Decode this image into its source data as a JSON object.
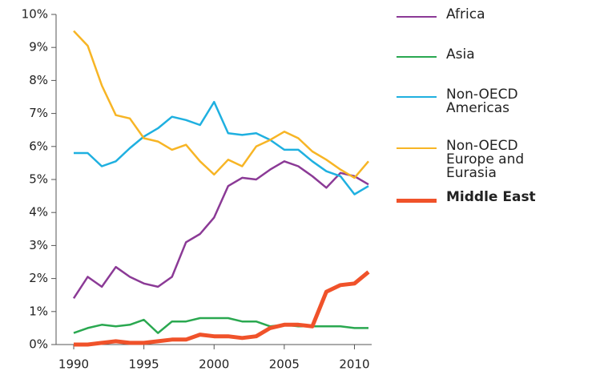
{
  "chart_data": {
    "type": "line",
    "x": [
      1990,
      1991,
      1992,
      1993,
      1994,
      1995,
      1996,
      1997,
      1998,
      1999,
      2000,
      2001,
      2002,
      2003,
      2004,
      2005,
      2006,
      2007,
      2008,
      2009,
      2010,
      2011
    ],
    "series": [
      {
        "name": "Africa",
        "color": "#8b3a96",
        "width": 2.5,
        "bold": false,
        "values": [
          1.4,
          2.05,
          1.75,
          2.35,
          2.05,
          1.85,
          1.75,
          2.05,
          3.1,
          3.35,
          3.85,
          4.8,
          5.05,
          5.0,
          5.3,
          5.55,
          5.4,
          5.1,
          4.75,
          5.2,
          5.1,
          4.85
        ]
      },
      {
        "name": "Asia",
        "color": "#2aa850",
        "width": 2.5,
        "bold": false,
        "values": [
          0.35,
          0.5,
          0.6,
          0.55,
          0.6,
          0.75,
          0.35,
          0.7,
          0.7,
          0.8,
          0.8,
          0.8,
          0.7,
          0.7,
          0.55,
          0.6,
          0.55,
          0.55,
          0.55,
          0.55,
          0.5,
          0.5
        ]
      },
      {
        "name": "Non-OECD Americas",
        "color": "#1fb0e0",
        "width": 2.5,
        "bold": false,
        "values": [
          5.8,
          5.8,
          5.4,
          5.55,
          5.95,
          6.3,
          6.55,
          6.9,
          6.8,
          6.65,
          7.35,
          6.4,
          6.35,
          6.4,
          6.2,
          5.9,
          5.9,
          5.55,
          5.25,
          5.1,
          4.55,
          4.8
        ]
      },
      {
        "name": "Non-OECD Europe and Eurasia",
        "color": "#f7b525",
        "width": 2.5,
        "bold": false,
        "values": [
          9.5,
          9.05,
          7.85,
          6.95,
          6.85,
          6.25,
          6.15,
          5.9,
          6.05,
          5.55,
          5.15,
          5.6,
          5.4,
          6.0,
          6.2,
          6.45,
          6.25,
          5.85,
          5.6,
          5.3,
          5.05,
          5.55
        ]
      },
      {
        "name": "Middle East",
        "color": "#f0522a",
        "width": 5,
        "bold": true,
        "values": [
          0,
          0,
          0.05,
          0.1,
          0.05,
          0.05,
          0.1,
          0.15,
          0.15,
          0.3,
          0.25,
          0.25,
          0.2,
          0.25,
          0.5,
          0.6,
          0.6,
          0.55,
          1.6,
          1.8,
          1.85,
          2.2
        ]
      }
    ],
    "xlim": [
      1989,
      2011
    ],
    "xticks": [
      1990,
      1995,
      2000,
      2005,
      2010
    ],
    "ylim": [
      0,
      10
    ],
    "yticks": [
      {
        "value": 0,
        "label": "0%"
      },
      {
        "value": 1,
        "label": "1%"
      },
      {
        "value": 2,
        "label": "2%"
      },
      {
        "value": 3,
        "label": "3%"
      },
      {
        "value": 4,
        "label": "4%"
      },
      {
        "value": 5,
        "label": "5%"
      },
      {
        "value": 6,
        "label": "6%"
      },
      {
        "value": 7,
        "label": "7%"
      },
      {
        "value": 8,
        "label": "8%"
      },
      {
        "value": 9,
        "label": "9%"
      },
      {
        "value": 10,
        "label": "10%"
      }
    ],
    "grid": false
  }
}
